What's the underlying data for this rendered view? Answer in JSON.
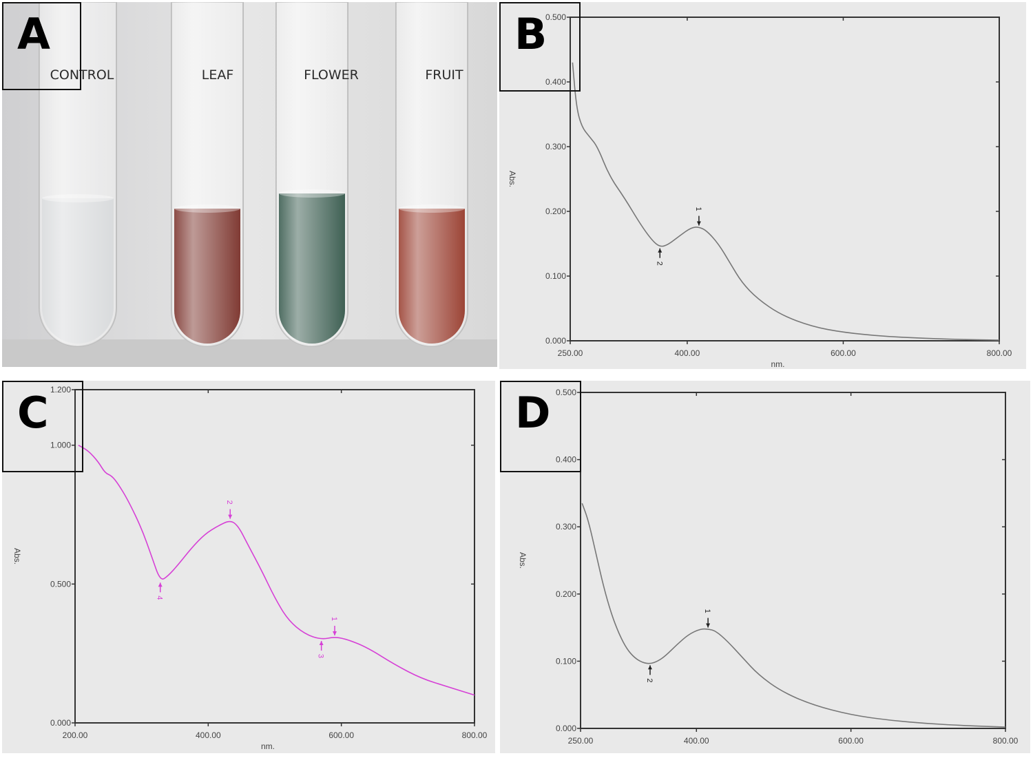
{
  "panels": {
    "a": {
      "letter": "A",
      "tubes": [
        {
          "label": "CONTROL",
          "liquid_color": "#d4d6d8"
        },
        {
          "label": "LEAF",
          "liquid_color": "#6e1f17"
        },
        {
          "label": "FLOWER",
          "liquid_color": "#244a3c"
        },
        {
          "label": "FRUIT",
          "liquid_color": "#8e2a1a"
        }
      ]
    },
    "b": {
      "letter": "B"
    },
    "c": {
      "letter": "C"
    },
    "d": {
      "letter": "D"
    }
  },
  "chart_data": [
    {
      "panel": "B",
      "type": "line",
      "xlabel": "nm.",
      "ylabel": "Abs.",
      "xlim": [
        250,
        800
      ],
      "ylim": [
        0,
        0.5
      ],
      "xticks": [
        "250.00",
        "400.00",
        "600.00",
        "800.00"
      ],
      "yticks": [
        "0.000",
        "0.100",
        "0.200",
        "0.300",
        "0.400",
        "0.500"
      ],
      "grid": false,
      "line_color": "#777777",
      "series": [
        {
          "x": [
            253,
            258,
            265,
            275,
            285,
            300,
            320,
            340,
            355,
            365,
            375,
            390,
            405,
            415,
            425,
            440,
            455,
            470,
            490,
            520,
            560,
            600,
            650,
            700,
            750,
            800
          ],
          "y": [
            0.43,
            0.36,
            0.33,
            0.315,
            0.3,
            0.255,
            0.22,
            0.18,
            0.155,
            0.145,
            0.148,
            0.162,
            0.175,
            0.176,
            0.17,
            0.15,
            0.12,
            0.09,
            0.065,
            0.04,
            0.022,
            0.013,
            0.007,
            0.004,
            0.002,
            0.001
          ]
        }
      ],
      "annotations": [
        {
          "text": "1",
          "x": 415,
          "y": 0.176
        },
        {
          "text": "2",
          "x": 365,
          "y": 0.145
        }
      ]
    },
    {
      "panel": "C",
      "type": "line",
      "xlabel": "nm.",
      "ylabel": "Abs.",
      "xlim": [
        200,
        800
      ],
      "ylim": [
        0,
        1.2
      ],
      "xticks": [
        "200.00",
        "400.00",
        "600.00",
        "800.00"
      ],
      "yticks": [
        "0.000",
        "0.500",
        "1.000",
        "1.200"
      ],
      "grid": false,
      "line_color": "#d640d6",
      "series": [
        {
          "x": [
            205,
            220,
            235,
            245,
            255,
            265,
            280,
            300,
            315,
            328,
            340,
            355,
            375,
            395,
            415,
            433,
            445,
            460,
            480,
            500,
            520,
            545,
            570,
            590,
            610,
            640,
            680,
            720,
            760,
            800
          ],
          "y": [
            1.0,
            0.98,
            0.94,
            0.9,
            0.89,
            0.86,
            0.8,
            0.7,
            0.6,
            0.51,
            0.53,
            0.57,
            0.63,
            0.68,
            0.71,
            0.73,
            0.71,
            0.64,
            0.55,
            0.45,
            0.37,
            0.32,
            0.3,
            0.31,
            0.3,
            0.27,
            0.21,
            0.16,
            0.13,
            0.1
          ]
        }
      ],
      "annotations": [
        {
          "text": "1",
          "x": 590,
          "y": 0.31
        },
        {
          "text": "2",
          "x": 433,
          "y": 0.73
        },
        {
          "text": "3",
          "x": 570,
          "y": 0.3
        },
        {
          "text": "4",
          "x": 328,
          "y": 0.51
        }
      ]
    },
    {
      "panel": "D",
      "type": "line",
      "xlabel": "",
      "ylabel": "Abs.",
      "xlim": [
        250,
        800
      ],
      "ylim": [
        0,
        0.5
      ],
      "xticks": [
        "250.00",
        "400.00",
        "600.00",
        "800.00"
      ],
      "yticks": [
        "0.000",
        "0.100",
        "0.200",
        "0.300",
        "0.400",
        "0.500"
      ],
      "grid": false,
      "line_color": "#777777",
      "series": [
        {
          "x": [
            252,
            260,
            270,
            280,
            290,
            300,
            310,
            320,
            330,
            340,
            350,
            360,
            375,
            390,
            405,
            415,
            425,
            440,
            460,
            480,
            510,
            550,
            600,
            650,
            700,
            750,
            800
          ],
          "y": [
            0.335,
            0.31,
            0.26,
            0.21,
            0.17,
            0.14,
            0.118,
            0.105,
            0.098,
            0.096,
            0.1,
            0.108,
            0.125,
            0.14,
            0.148,
            0.148,
            0.145,
            0.13,
            0.105,
            0.08,
            0.055,
            0.035,
            0.02,
            0.012,
            0.007,
            0.004,
            0.002
          ]
        }
      ],
      "annotations": [
        {
          "text": "1",
          "x": 415,
          "y": 0.148
        },
        {
          "text": "2",
          "x": 340,
          "y": 0.096
        }
      ]
    }
  ]
}
